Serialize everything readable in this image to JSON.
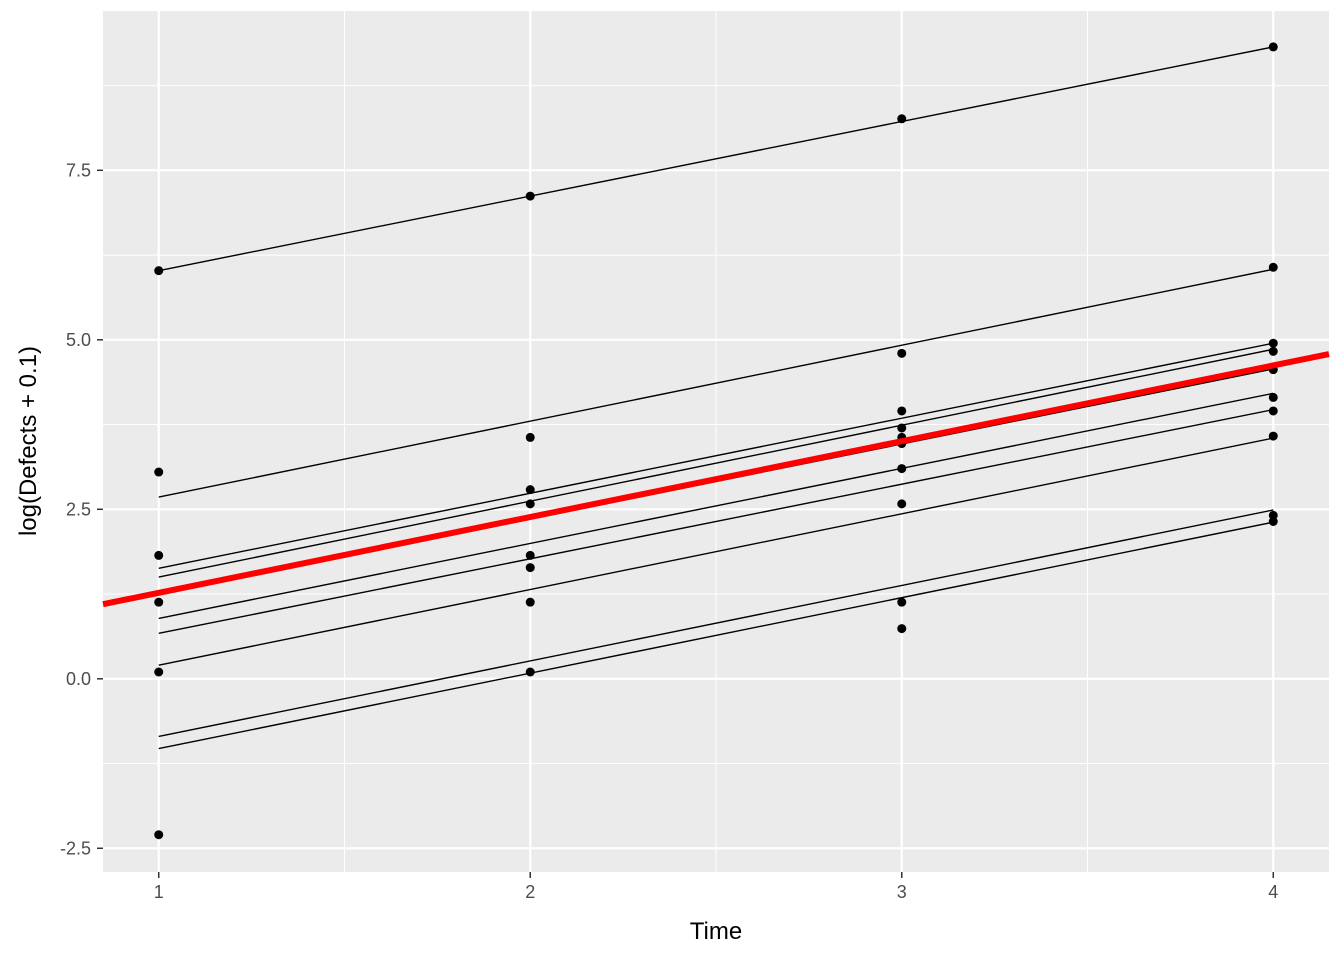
{
  "chart_data": {
    "type": "line",
    "xlabel": "Time",
    "ylabel": "log(Defects + 0.1)",
    "xlim": [
      0.85,
      4.15
    ],
    "ylim": [
      -2.85,
      9.85
    ],
    "x_ticks": [
      1,
      2,
      3,
      4
    ],
    "x_tick_labels": [
      "1",
      "2",
      "3",
      "4"
    ],
    "y_ticks": [
      -2.5,
      0,
      2.5,
      5,
      7.5
    ],
    "y_tick_labels": [
      "-2.5",
      "0.0",
      "2.5",
      "5.0",
      "7.5"
    ],
    "x_minor_ticks": [
      1.5,
      2.5,
      3.5
    ],
    "y_minor_ticks": [
      -1.25,
      1.25,
      3.75,
      6.25,
      8.75
    ],
    "grid": true,
    "colors": {
      "panel_background": "#ebebeb",
      "grid": "#ffffff",
      "points": "#000000",
      "fit_lines": "#000000",
      "overall_fit": "#ff0000"
    },
    "points": [
      {
        "x": 1,
        "y": 6.02
      },
      {
        "x": 1,
        "y": 3.05
      },
      {
        "x": 1,
        "y": 1.82
      },
      {
        "x": 1,
        "y": 1.13
      },
      {
        "x": 1,
        "y": 0.1
      },
      {
        "x": 1,
        "y": -2.3
      },
      {
        "x": 2,
        "y": 7.12
      },
      {
        "x": 2,
        "y": 3.56
      },
      {
        "x": 2,
        "y": 2.79
      },
      {
        "x": 2,
        "y": 2.58
      },
      {
        "x": 2,
        "y": 1.82
      },
      {
        "x": 2,
        "y": 1.64
      },
      {
        "x": 2,
        "y": 1.13
      },
      {
        "x": 2,
        "y": 0.1
      },
      {
        "x": 3,
        "y": 8.26
      },
      {
        "x": 3,
        "y": 4.8
      },
      {
        "x": 3,
        "y": 3.95
      },
      {
        "x": 3,
        "y": 3.7
      },
      {
        "x": 3,
        "y": 3.56
      },
      {
        "x": 3,
        "y": 3.47
      },
      {
        "x": 3,
        "y": 3.1
      },
      {
        "x": 3,
        "y": 2.58
      },
      {
        "x": 3,
        "y": 1.13
      },
      {
        "x": 3,
        "y": 0.74
      },
      {
        "x": 4,
        "y": 9.32
      },
      {
        "x": 4,
        "y": 6.07
      },
      {
        "x": 4,
        "y": 4.95
      },
      {
        "x": 4,
        "y": 4.83
      },
      {
        "x": 4,
        "y": 4.56
      },
      {
        "x": 4,
        "y": 4.15
      },
      {
        "x": 4,
        "y": 3.95
      },
      {
        "x": 4,
        "y": 3.58
      },
      {
        "x": 4,
        "y": 2.41
      },
      {
        "x": 4,
        "y": 2.32
      }
    ],
    "group_fits": [
      {
        "x": [
          1,
          4
        ],
        "y": [
          6.02,
          9.32
        ]
      },
      {
        "x": [
          1,
          4
        ],
        "y": [
          2.68,
          6.04
        ]
      },
      {
        "x": [
          1,
          4
        ],
        "y": [
          1.63,
          4.95
        ]
      },
      {
        "x": [
          1,
          4
        ],
        "y": [
          1.5,
          4.86
        ]
      },
      {
        "x": [
          1,
          4
        ],
        "y": [
          1.25,
          4.57
        ]
      },
      {
        "x": [
          1,
          4
        ],
        "y": [
          0.89,
          4.21
        ]
      },
      {
        "x": [
          1,
          4
        ],
        "y": [
          0.67,
          3.97
        ]
      },
      {
        "x": [
          1,
          4
        ],
        "y": [
          0.2,
          3.55
        ]
      },
      {
        "x": [
          1,
          4
        ],
        "y": [
          -0.85,
          2.49
        ]
      },
      {
        "x": [
          1,
          4
        ],
        "y": [
          -1.03,
          2.31
        ]
      }
    ],
    "overall_fit": {
      "x": [
        0.85,
        4.15
      ],
      "y": [
        1.1,
        4.79
      ]
    }
  }
}
